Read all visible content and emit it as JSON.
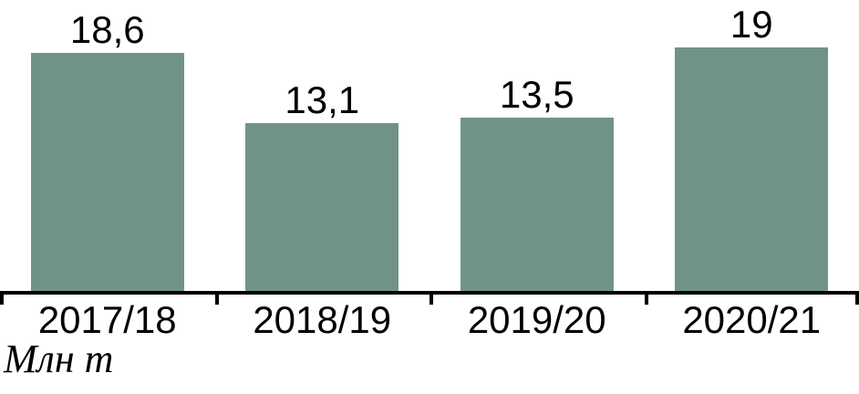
{
  "chart_data": {
    "type": "bar",
    "categories": [
      "2017/18",
      "2018/19",
      "2019/20",
      "2020/21"
    ],
    "values": [
      18.6,
      13.1,
      13.5,
      19
    ],
    "value_labels": [
      "18,6",
      "13,1",
      "13,5",
      "19"
    ],
    "title": "",
    "xlabel": "",
    "ylabel": "Млн т",
    "ylim": [
      0,
      20
    ],
    "grid": false,
    "legend": null,
    "bar_color": "#6F9486",
    "axis_color": "#000000",
    "text_color": "#000000"
  }
}
